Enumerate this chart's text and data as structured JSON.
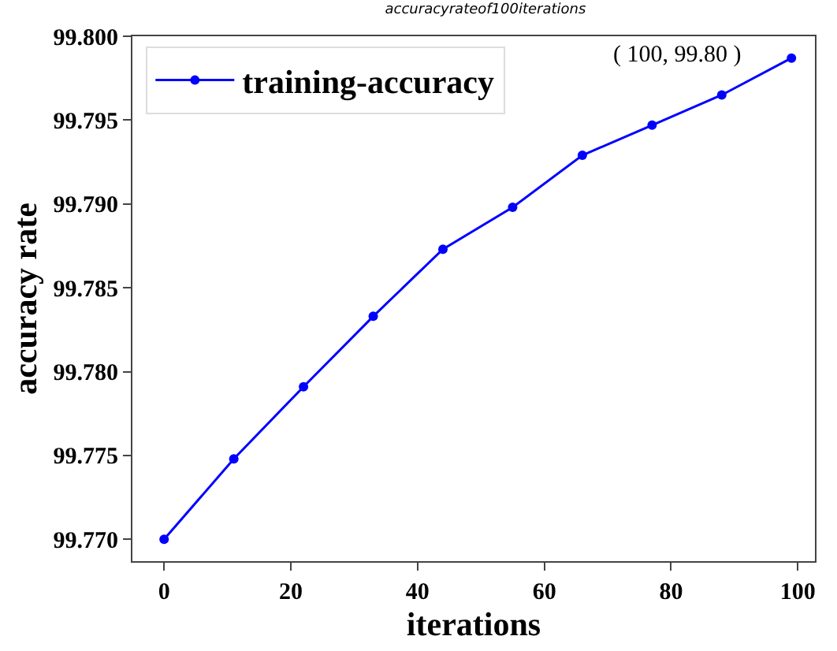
{
  "chart_data": {
    "type": "line",
    "title": "accuracyrateof100iterations",
    "xlabel": "iterations",
    "ylabel": "accuracy rate",
    "x": [
      0,
      11,
      22,
      33,
      44,
      55,
      66,
      77,
      88,
      99
    ],
    "series": [
      {
        "name": "training-accuracy",
        "color": "#0000ff",
        "values": [
          99.77,
          99.7748,
          99.7791,
          99.7833,
          99.7873,
          99.7898,
          99.7929,
          99.7947,
          99.7965,
          99.7987
        ]
      }
    ],
    "xlim": [
      -5,
      102.7
    ],
    "ylim": [
      99.7687,
      99.8
    ],
    "xticks": [
      0,
      20,
      40,
      60,
      80,
      100
    ],
    "yticks": [
      {
        "value": 99.77,
        "label": "99.770"
      },
      {
        "value": 99.775,
        "label": "99.775"
      },
      {
        "value": 99.78,
        "label": "99.780"
      },
      {
        "value": 99.785,
        "label": "99.785"
      },
      {
        "value": 99.79,
        "label": "99.790"
      },
      {
        "value": 99.795,
        "label": "99.795"
      },
      {
        "value": 99.8,
        "label": "99.800"
      }
    ],
    "annotations": [
      "( 100, 99.80 )"
    ],
    "marker": "circle",
    "line_style": "solid",
    "legend": "top left"
  }
}
